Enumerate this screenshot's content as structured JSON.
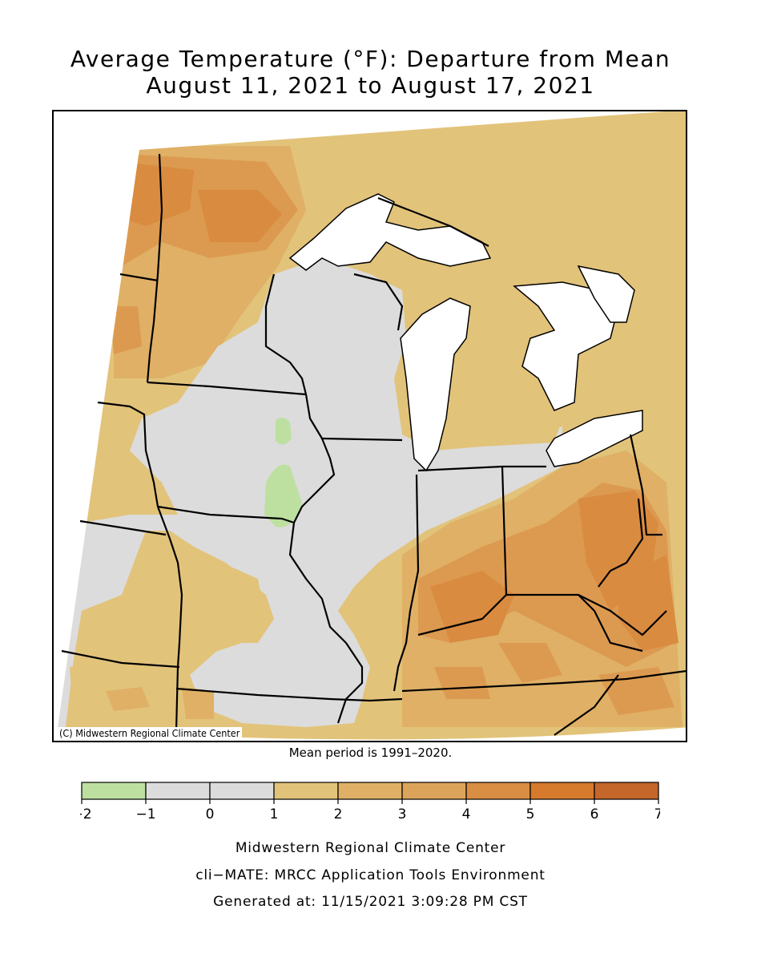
{
  "title": {
    "line1": "Average Temperature (°F): Departure from Mean",
    "line2": "August 11, 2021 to August 17, 2021"
  },
  "map": {
    "copyright": "(C) Midwestern Regional Climate Center",
    "base_fill": "#e2c37a",
    "region_colors": {
      "green": "#bde0a0",
      "gray": "#dcdcdc",
      "level1_2": "#e2c37a",
      "level2_3": "#dfb066",
      "level3_4": "#dc9a50",
      "level4_5": "#d98b40",
      "level5_6": "#d67a2c",
      "level6_7": "#c5662a"
    }
  },
  "mean_period_note": "Mean period is 1991–2020.",
  "legend": {
    "colors": [
      "#bde0a0",
      "#dcdcdc",
      "#dcdcdc",
      "#e2c37a",
      "#dfb066",
      "#dca45a",
      "#d98e43",
      "#d67a2c",
      "#c5662a"
    ],
    "tick_labels": [
      "−2",
      "−1",
      "0",
      "1",
      "2",
      "3",
      "4",
      "5",
      "6",
      "7"
    ]
  },
  "footer": {
    "line1": "Midwestern Regional Climate Center",
    "line2": "cli−MATE: MRCC Application Tools Environment",
    "line3": "Generated at: 11/15/2021 3:09:28 PM CST"
  }
}
